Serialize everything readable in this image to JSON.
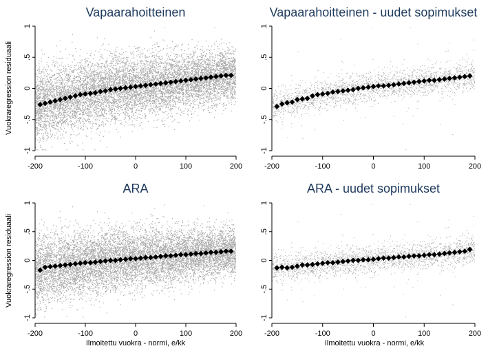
{
  "figure": {
    "ylabel": "Vuokraregression residuaali",
    "xlabel": "Ilmoitettu vuokra - normi, e/kk"
  },
  "colors": {
    "scatter": "#a9a9a9",
    "means": "#000000",
    "title": "#1e3a5c",
    "background": "#ffffff"
  },
  "chart_data": [
    {
      "type": "scatter",
      "title": "Vapaarahoitteinen",
      "xlim": [
        -200,
        200
      ],
      "ylim": [
        -1,
        1
      ],
      "xticks": [
        -200,
        -100,
        0,
        100,
        200
      ],
      "yticks": [
        -1,
        -0.5,
        0,
        0.5,
        1
      ],
      "ytick_labels": [
        "-1",
        "-.5",
        "0",
        ".5",
        "1"
      ],
      "scatter_density": "very dense",
      "series": [
        {
          "x": [
            -190,
            -180,
            -170,
            -160,
            -150,
            -140,
            -130,
            -120,
            -110,
            -100,
            -90,
            -80,
            -70,
            -60,
            -50,
            -40,
            -30,
            -20,
            -10,
            0,
            10,
            20,
            30,
            40,
            50,
            60,
            70,
            80,
            90,
            100,
            110,
            120,
            130,
            140,
            150,
            160,
            170,
            180,
            190
          ],
          "values": [
            -0.26,
            -0.24,
            -0.22,
            -0.2,
            -0.18,
            -0.16,
            -0.14,
            -0.12,
            -0.1,
            -0.09,
            -0.08,
            -0.07,
            -0.05,
            -0.04,
            -0.02,
            -0.01,
            0.0,
            0.01,
            0.02,
            0.03,
            0.04,
            0.05,
            0.06,
            0.07,
            0.08,
            0.09,
            0.1,
            0.11,
            0.12,
            0.13,
            0.14,
            0.15,
            0.16,
            0.17,
            0.18,
            0.19,
            0.2,
            0.21,
            0.21
          ]
        }
      ]
    },
    {
      "type": "scatter",
      "title": "Vapaarahoitteinen - uudet sopimukset",
      "xlim": [
        -200,
        200
      ],
      "ylim": [
        -1,
        1
      ],
      "xticks": [
        -200,
        -100,
        0,
        100,
        200
      ],
      "yticks": [
        -1,
        -0.5,
        0,
        0.5,
        1
      ],
      "ytick_labels": [
        "-1",
        "-.5",
        "0",
        ".5",
        "1"
      ],
      "scatter_density": "sparse",
      "series": [
        {
          "x": [
            -190,
            -180,
            -170,
            -160,
            -150,
            -140,
            -130,
            -120,
            -110,
            -100,
            -90,
            -80,
            -70,
            -60,
            -50,
            -40,
            -30,
            -20,
            -10,
            0,
            10,
            20,
            30,
            40,
            50,
            60,
            70,
            80,
            90,
            100,
            110,
            120,
            130,
            140,
            150,
            160,
            170,
            180,
            190
          ],
          "values": [
            -0.29,
            -0.25,
            -0.23,
            -0.22,
            -0.18,
            -0.17,
            -0.16,
            -0.12,
            -0.1,
            -0.09,
            -0.08,
            -0.06,
            -0.05,
            -0.04,
            -0.03,
            -0.02,
            0.0,
            0.01,
            0.02,
            0.03,
            0.04,
            0.04,
            0.05,
            0.06,
            0.07,
            0.08,
            0.09,
            0.1,
            0.11,
            0.12,
            0.13,
            0.13,
            0.14,
            0.15,
            0.16,
            0.17,
            0.18,
            0.19,
            0.2
          ]
        }
      ]
    },
    {
      "type": "scatter",
      "title": "ARA",
      "xlim": [
        -200,
        200
      ],
      "ylim": [
        -1,
        1
      ],
      "xticks": [
        -200,
        -100,
        0,
        100,
        200
      ],
      "yticks": [
        -1,
        -0.5,
        0,
        0.5,
        1
      ],
      "ytick_labels": [
        "-1",
        "-.5",
        "0",
        ".5",
        "1"
      ],
      "scatter_density": "very dense",
      "series": [
        {
          "x": [
            -190,
            -180,
            -170,
            -160,
            -150,
            -140,
            -130,
            -120,
            -110,
            -100,
            -90,
            -80,
            -70,
            -60,
            -50,
            -40,
            -30,
            -20,
            -10,
            0,
            10,
            20,
            30,
            40,
            50,
            60,
            70,
            80,
            90,
            100,
            110,
            120,
            130,
            140,
            150,
            160,
            170,
            180,
            190
          ],
          "values": [
            -0.17,
            -0.12,
            -0.11,
            -0.1,
            -0.09,
            -0.08,
            -0.07,
            -0.06,
            -0.05,
            -0.04,
            -0.04,
            -0.03,
            -0.02,
            -0.01,
            0.0,
            0.0,
            0.01,
            0.02,
            0.03,
            0.03,
            0.04,
            0.05,
            0.05,
            0.06,
            0.07,
            0.08,
            0.08,
            0.09,
            0.1,
            0.1,
            0.11,
            0.12,
            0.12,
            0.13,
            0.14,
            0.14,
            0.15,
            0.16,
            0.16
          ]
        }
      ]
    },
    {
      "type": "scatter",
      "title": "ARA - uudet sopimukset",
      "xlim": [
        -200,
        200
      ],
      "ylim": [
        -1,
        1
      ],
      "xticks": [
        -200,
        -100,
        0,
        100,
        200
      ],
      "yticks": [
        -1,
        -0.5,
        0,
        0.5,
        1
      ],
      "ytick_labels": [
        "-1",
        "-.5",
        "0",
        ".5",
        "1"
      ],
      "scatter_density": "sparse",
      "series": [
        {
          "x": [
            -190,
            -180,
            -170,
            -160,
            -150,
            -140,
            -130,
            -120,
            -110,
            -100,
            -90,
            -80,
            -70,
            -60,
            -50,
            -40,
            -30,
            -20,
            -10,
            0,
            10,
            20,
            30,
            40,
            50,
            60,
            70,
            80,
            90,
            100,
            110,
            120,
            130,
            140,
            150,
            160,
            170,
            180,
            190
          ],
          "values": [
            -0.13,
            -0.12,
            -0.13,
            -0.12,
            -0.1,
            -0.08,
            -0.08,
            -0.07,
            -0.06,
            -0.05,
            -0.04,
            -0.04,
            -0.03,
            -0.02,
            -0.01,
            0.0,
            0.0,
            0.01,
            0.01,
            0.02,
            0.03,
            0.04,
            0.04,
            0.05,
            0.06,
            0.06,
            0.07,
            0.08,
            0.08,
            0.09,
            0.1,
            0.1,
            0.11,
            0.12,
            0.13,
            0.14,
            0.15,
            0.16,
            0.19
          ]
        }
      ]
    }
  ]
}
